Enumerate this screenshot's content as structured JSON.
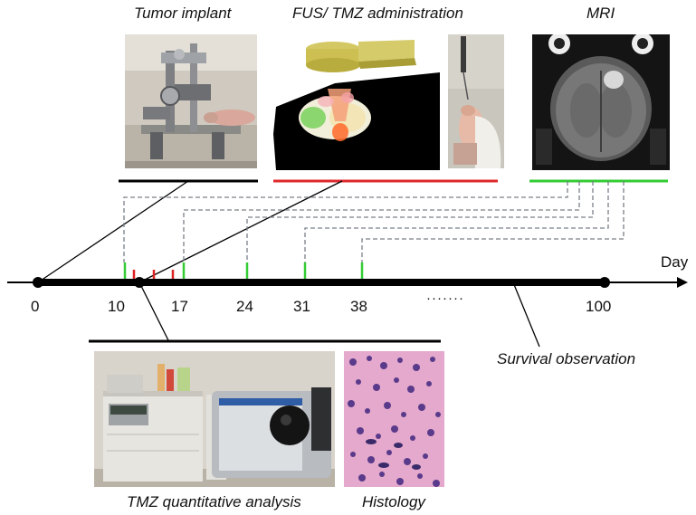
{
  "labels": {
    "tumor_implant": "Tumor implant",
    "fus_tmz": "FUS/ TMZ administration",
    "mri": "MRI",
    "survival": "Survival observation",
    "tmz_analysis": "TMZ quantitative analysis",
    "histology": "Histology",
    "day_axis": "Day",
    "ellipsis": "·······"
  },
  "timeline": {
    "ticks": [
      {
        "day": "0"
      },
      {
        "day": "10"
      },
      {
        "day": "17"
      },
      {
        "day": "24"
      },
      {
        "day": "31"
      },
      {
        "day": "38"
      },
      {
        "day": "100"
      }
    ],
    "mri_days": [
      10,
      17,
      24,
      31,
      38
    ],
    "fus_tmz_days": [
      11,
      13,
      15
    ],
    "tumor_implant_day": 0,
    "analysis_day": 12,
    "survival_end_day": 100
  },
  "colors": {
    "axis": "#000000",
    "mri_marker": "#33cc33",
    "fus_marker": "#dd2222",
    "connector_dashed": "#7a8088",
    "bracket_black": "#000000",
    "bracket_red": "#e0282c",
    "bracket_green": "#33cc33"
  }
}
